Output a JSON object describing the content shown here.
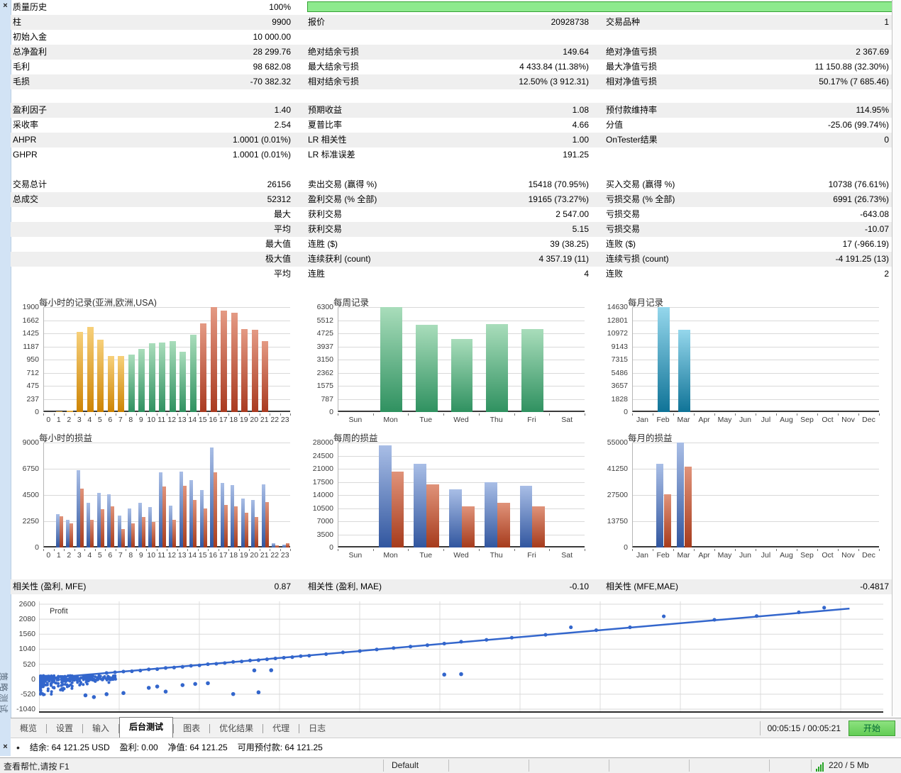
{
  "panel": {
    "title_vertical": "策略测试",
    "close_icon": "×"
  },
  "colors": {
    "progress_green": "#8dea8d",
    "accent_blue": "#3366cc",
    "palette": {
      "orange": [
        "#f7d07a",
        "#cd8404"
      ],
      "green": [
        "#a9ddbb",
        "#2f9160"
      ],
      "red": [
        "#e49a84",
        "#a93a20"
      ],
      "cyan": [
        "#95d7ec",
        "#0f7397"
      ],
      "blue": [
        "#a9bee6",
        "#31569f"
      ],
      "loss": [
        "#e0937a",
        "#a63b1c"
      ]
    }
  },
  "stats_blocks": [
    {
      "start": 0,
      "rows": [
        {
          "c": [
            "质量历史",
            "100%",
            "",
            "",
            "",
            ""
          ],
          "progress": true
        },
        {
          "c": [
            "柱",
            "9900",
            "报价",
            "20928738",
            "交易品种",
            "1"
          ]
        },
        {
          "c": [
            "初始入金",
            "10 000.00",
            "",
            "",
            "",
            ""
          ]
        },
        {
          "c": [
            "总净盈利",
            "28 299.76",
            "绝对结余亏损",
            "149.64",
            "绝对净值亏损",
            "2 367.69"
          ]
        },
        {
          "c": [
            "毛利",
            "98 682.08",
            "最大结余亏损",
            "4 433.84 (11.38%)",
            "最大净值亏损",
            "11 150.88 (32.30%)"
          ]
        },
        {
          "c": [
            "毛损",
            "-70 382.32",
            "相对结余亏损",
            "12.50% (3 912.31)",
            "相对净值亏损",
            "50.17% (7 685.46)"
          ]
        }
      ]
    },
    {
      "start": 1,
      "rows": [
        {
          "c": [
            "盈利因子",
            "1.40",
            "预期收益",
            "1.08",
            "预付款维持率",
            "114.95%"
          ]
        },
        {
          "c": [
            "采收率",
            "2.54",
            "夏普比率",
            "4.66",
            "分值",
            "-25.06 (99.74%)"
          ]
        },
        {
          "c": [
            "AHPR",
            "1.0001 (0.01%)",
            "LR 相关性",
            "1.00",
            "OnTester结果",
            "0"
          ]
        },
        {
          "c": [
            "GHPR",
            "1.0001 (0.01%)",
            "LR 标准误差",
            "191.25",
            "",
            ""
          ]
        }
      ]
    },
    {
      "start": 0,
      "rows": [
        {
          "c": [
            "交易总计",
            "26156",
            "卖出交易 (赢得 %)",
            "15418 (70.95%)",
            "买入交易 (赢得 %)",
            "10738 (76.61%)"
          ]
        },
        {
          "c": [
            "总成交",
            "52312",
            "盈利交易 (% 全部)",
            "19165 (73.27%)",
            "亏损交易 (% 全部)",
            "6991 (26.73%)"
          ]
        },
        {
          "c": [
            "",
            "最大",
            "获利交易",
            "2 547.00",
            "亏损交易",
            "-643.08"
          ]
        },
        {
          "c": [
            "",
            "平均",
            "获利交易",
            "5.15",
            "亏损交易",
            "-10.07"
          ]
        },
        {
          "c": [
            "",
            "最大值",
            "连胜 ($)",
            "39 (38.25)",
            "连败 ($)",
            "17 (-966.19)"
          ]
        },
        {
          "c": [
            "",
            "极大值",
            "连续获利 (count)",
            "4 357.19 (11)",
            "连续亏损 (count)",
            "-4 191.25 (13)"
          ]
        },
        {
          "c": [
            "",
            "平均",
            "连胜",
            "4",
            "连败",
            "2"
          ]
        }
      ]
    },
    {
      "start": 1,
      "rows": [
        {
          "c": [
            "相关性 (盈利, MFE)",
            "0.87",
            "相关性 (盈利, MAE)",
            "-0.10",
            "相关性 (MFE,MAE)",
            "-0.4817"
          ]
        }
      ]
    }
  ],
  "chart_data": [
    {
      "type": "bar",
      "title": "每小时的记录(亚洲,欧洲,USA)",
      "categories": [
        "0",
        "1",
        "2",
        "3",
        "4",
        "5",
        "6",
        "7",
        "8",
        "9",
        "10",
        "11",
        "12",
        "13",
        "14",
        "15",
        "16",
        "17",
        "18",
        "19",
        "20",
        "21",
        "22",
        "23"
      ],
      "values": [
        0,
        18,
        25,
        1445,
        1545,
        1310,
        1015,
        1020,
        1035,
        1140,
        1250,
        1255,
        1290,
        1085,
        1400,
        1610,
        1900,
        1830,
        1795,
        1500,
        1490,
        1290,
        0,
        0
      ],
      "bar_colors": [
        "orange",
        "orange",
        "orange",
        "orange",
        "orange",
        "orange",
        "orange",
        "orange",
        "green",
        "green",
        "green",
        "green",
        "green",
        "green",
        "green",
        "red",
        "red",
        "red",
        "red",
        "red",
        "red",
        "red",
        "red",
        "red"
      ],
      "yticks": [
        1900,
        1662,
        1425,
        1187,
        950,
        712,
        475,
        237,
        0
      ],
      "ymax": 1900
    },
    {
      "type": "bar",
      "title": "每周记录",
      "categories": [
        "Sun",
        "Mon",
        "Tue",
        "Wed",
        "Thu",
        "Fri",
        "Sat"
      ],
      "values": [
        0,
        6300,
        5220,
        4400,
        5280,
        5000,
        0
      ],
      "color": "green",
      "yticks": [
        6300,
        5512,
        4725,
        3937,
        3150,
        2362,
        1575,
        787,
        0
      ],
      "ymax": 6300
    },
    {
      "type": "bar",
      "title": "每月记录",
      "categories": [
        "Jan",
        "Feb",
        "Mar",
        "Apr",
        "May",
        "Jun",
        "Jul",
        "Aug",
        "Sep",
        "Oct",
        "Nov",
        "Dec"
      ],
      "values": [
        0,
        14630,
        11450,
        0,
        0,
        0,
        0,
        0,
        0,
        0,
        0,
        0
      ],
      "color": "cyan",
      "yticks": [
        14630,
        12801,
        10972,
        9143,
        7315,
        5486,
        3657,
        1828,
        0
      ],
      "ymax": 14630
    },
    {
      "type": "bar",
      "title": "每小时的损益",
      "categories": [
        "0",
        "1",
        "2",
        "3",
        "4",
        "5",
        "6",
        "7",
        "8",
        "9",
        "10",
        "11",
        "12",
        "13",
        "14",
        "15",
        "16",
        "17",
        "18",
        "19",
        "20",
        "21",
        "22",
        "23"
      ],
      "series": [
        {
          "name": "profit",
          "color": "blue",
          "values": [
            0,
            2850,
            2400,
            6650,
            3850,
            4700,
            4550,
            2750,
            3350,
            3850,
            3450,
            6450,
            3600,
            6500,
            5750,
            4950,
            8550,
            5550,
            5350,
            4200,
            4100,
            5400,
            350,
            250
          ]
        },
        {
          "name": "loss",
          "color": "loss",
          "values": [
            0,
            2700,
            2050,
            5050,
            2400,
            3300,
            3500,
            1600,
            2050,
            2600,
            2200,
            5200,
            2350,
            5300,
            4050,
            3350,
            6450,
            3650,
            3500,
            2950,
            2600,
            3900,
            200,
            380
          ]
        }
      ],
      "yticks": [
        9000,
        6750,
        4500,
        2250,
        0
      ],
      "ymax": 9000
    },
    {
      "type": "bar",
      "title": "每周的损益",
      "categories": [
        "Sun",
        "Mon",
        "Tue",
        "Wed",
        "Thu",
        "Fri",
        "Sat"
      ],
      "series": [
        {
          "name": "profit",
          "color": "blue",
          "values": [
            0,
            27200,
            22400,
            15500,
            17400,
            16500,
            0
          ]
        },
        {
          "name": "loss",
          "color": "loss",
          "values": [
            0,
            20200,
            16900,
            10900,
            12000,
            11000,
            0
          ]
        }
      ],
      "yticks": [
        28000,
        24500,
        21000,
        17500,
        14000,
        10500,
        7000,
        3500,
        0
      ],
      "ymax": 28000
    },
    {
      "type": "bar",
      "title": "每月的损益",
      "categories": [
        "Jan",
        "Feb",
        "Mar",
        "Apr",
        "May",
        "Jun",
        "Jul",
        "Aug",
        "Sep",
        "Oct",
        "Nov",
        "Dec"
      ],
      "series": [
        {
          "name": "profit",
          "color": "blue",
          "values": [
            0,
            44000,
            55000,
            0,
            0,
            0,
            0,
            0,
            0,
            0,
            0,
            0
          ]
        },
        {
          "name": "loss",
          "color": "loss",
          "values": [
            0,
            28000,
            42500,
            0,
            0,
            0,
            0,
            0,
            0,
            0,
            0,
            0
          ]
        }
      ],
      "yticks": [
        55000,
        41250,
        27500,
        13750,
        0
      ],
      "ymax": 55000
    },
    {
      "type": "scatter",
      "label": "Profit",
      "yticks": [
        2600,
        2080,
        1560,
        1040,
        520,
        0,
        -520,
        -1040
      ],
      "trend": {
        "x1_pct": 0.3,
        "y1": 20,
        "x2_pct": 96,
        "y2": 2450
      },
      "points": [
        [
          8,
          215
        ],
        [
          9,
          240
        ],
        [
          10,
          265
        ],
        [
          11,
          275
        ],
        [
          12,
          300
        ],
        [
          13,
          340
        ],
        [
          14,
          350
        ],
        [
          15,
          390
        ],
        [
          16,
          405
        ],
        [
          17,
          430
        ],
        [
          18,
          465
        ],
        [
          19,
          480
        ],
        [
          20,
          520
        ],
        [
          21,
          535
        ],
        [
          22,
          560
        ],
        [
          23,
          600
        ],
        [
          24,
          615
        ],
        [
          25,
          650
        ],
        [
          26,
          660
        ],
        [
          27,
          690
        ],
        [
          28,
          720
        ],
        [
          29,
          745
        ],
        [
          30,
          765
        ],
        [
          31,
          800
        ],
        [
          32,
          815
        ],
        [
          34,
          870
        ],
        [
          36,
          930
        ],
        [
          38,
          975
        ],
        [
          40,
          1030
        ],
        [
          42,
          1080
        ],
        [
          44,
          1130
        ],
        [
          46,
          1180
        ],
        [
          48,
          1235
        ],
        [
          50,
          1300
        ],
        [
          53,
          1365
        ],
        [
          56,
          1440
        ],
        [
          60,
          1540
        ],
        [
          63,
          1800
        ],
        [
          66,
          1700
        ],
        [
          70,
          1800
        ],
        [
          74,
          2180
        ],
        [
          80,
          2060
        ],
        [
          85,
          2190
        ],
        [
          90,
          2320
        ],
        [
          93,
          2480
        ]
      ],
      "outliers": [
        [
          5.5,
          -560
        ],
        [
          6.5,
          -620
        ],
        [
          8,
          -520
        ],
        [
          10,
          -480
        ],
        [
          13,
          -300
        ],
        [
          14,
          -255
        ],
        [
          15,
          -430
        ],
        [
          17,
          -205
        ],
        [
          18.5,
          -165
        ],
        [
          20,
          -140
        ],
        [
          23,
          -515
        ],
        [
          26,
          -455
        ],
        [
          25.5,
          305
        ],
        [
          27.5,
          310
        ],
        [
          48,
          160
        ],
        [
          50,
          175
        ]
      ],
      "cluster": {
        "n": 320,
        "seed": 1234,
        "x_max_pct": 9.5
      }
    }
  ],
  "tabs": {
    "items": [
      "概览",
      "设置",
      "输入",
      "后台测试",
      "图表",
      "优化结果",
      "代理",
      "日志"
    ],
    "active": "后台测试",
    "timer": "00:05:15 / 00:05:21",
    "start_label": "开始"
  },
  "status_row": {
    "bullet": "•",
    "items": [
      "结余: 64 121.25 USD",
      "盈利: 0.00",
      "净值: 64 121.25",
      "可用预付款: 64 121.25"
    ]
  },
  "status_bar": {
    "help": "查看帮忙,请按 F1",
    "profile": "Default",
    "network": "220 / 5 Mb"
  }
}
